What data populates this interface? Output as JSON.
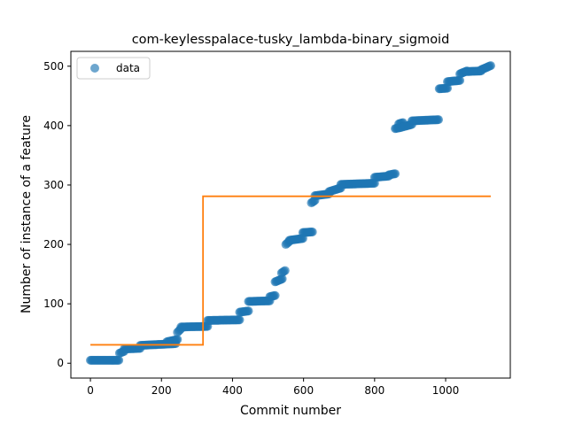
{
  "chart_data": {
    "type": "scatter",
    "title": "com-keylesspalace-tusky_lambda-binary_sigmoid",
    "xlabel": "Commit number",
    "ylabel": "Number of instance of a feature",
    "xlim": [
      -55,
      1182
    ],
    "ylim": [
      -25,
      525
    ],
    "xticks": [
      0,
      200,
      400,
      600,
      800,
      1000
    ],
    "yticks": [
      0,
      100,
      200,
      300,
      400,
      500
    ],
    "legend": {
      "position": "top-left",
      "entries": [
        "data"
      ]
    },
    "grid": false,
    "colors": {
      "data": "#1f77b4",
      "fit": "#ff7f0e"
    },
    "series": [
      {
        "name": "data",
        "kind": "scatter",
        "segments": [
          {
            "x": [
              0,
              80
            ],
            "y": [
              5,
              5
            ]
          },
          {
            "x": [
              82,
              95
            ],
            "y": [
              17,
              20
            ]
          },
          {
            "x": [
              95,
              140
            ],
            "y": [
              24,
              25
            ]
          },
          {
            "x": [
              140,
              240
            ],
            "y": [
              30,
              33
            ]
          },
          {
            "x": [
              215,
              245
            ],
            "y": [
              36,
              40
            ]
          },
          {
            "x": [
              245,
              255
            ],
            "y": [
              52,
              58
            ]
          },
          {
            "x": [
              255,
              330
            ],
            "y": [
              61,
              62
            ]
          },
          {
            "x": [
              330,
              420
            ],
            "y": [
              72,
              73
            ]
          },
          {
            "x": [
              420,
              445
            ],
            "y": [
              86,
              88
            ]
          },
          {
            "x": [
              445,
              505
            ],
            "y": [
              104,
              105
            ]
          },
          {
            "x": [
              505,
              520
            ],
            "y": [
              112,
              114
            ]
          },
          {
            "x": [
              520,
              540
            ],
            "y": [
              137,
              142
            ]
          },
          {
            "x": [
              538,
              548
            ],
            "y": [
              152,
              156
            ]
          },
          {
            "x": [
              550,
              560
            ],
            "y": [
              200,
              205
            ]
          },
          {
            "x": [
              560,
              598
            ],
            "y": [
              207,
              210
            ]
          },
          {
            "x": [
              598,
              625
            ],
            "y": [
              220,
              221
            ]
          },
          {
            "x": [
              622,
              632
            ],
            "y": [
              270,
              274
            ]
          },
          {
            "x": [
              632,
              672
            ],
            "y": [
              282,
              285
            ]
          },
          {
            "x": [
              672,
              705
            ],
            "y": [
              289,
              295
            ]
          },
          {
            "x": [
              705,
              800
            ],
            "y": [
              301,
              303
            ]
          },
          {
            "x": [
              800,
              840
            ],
            "y": [
              313,
              315
            ]
          },
          {
            "x": [
              840,
              858
            ],
            "y": [
              317,
              319
            ]
          },
          {
            "x": [
              858,
              875
            ],
            "y": [
              395,
              397
            ]
          },
          {
            "x": [
              868,
              880
            ],
            "y": [
              403,
              405
            ]
          },
          {
            "x": [
              880,
              905
            ],
            "y": [
              398,
              402
            ]
          },
          {
            "x": [
              905,
              980
            ],
            "y": [
              408,
              410
            ]
          },
          {
            "x": [
              982,
              1005
            ],
            "y": [
              462,
              463
            ]
          },
          {
            "x": [
              1005,
              1040
            ],
            "y": [
              474,
              476
            ]
          },
          {
            "x": [
              1040,
              1060
            ],
            "y": [
              487,
              492
            ]
          },
          {
            "x": [
              1060,
              1100
            ],
            "y": [
              491,
              492
            ]
          },
          {
            "x": [
              1100,
              1127
            ],
            "y": [
              494,
              501
            ]
          }
        ]
      },
      {
        "name": "",
        "kind": "line",
        "x": [
          0,
          317,
          317,
          1127
        ],
        "y": [
          31,
          31,
          281,
          281
        ]
      }
    ]
  }
}
